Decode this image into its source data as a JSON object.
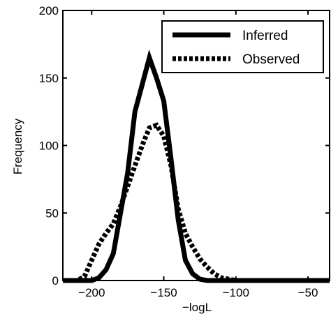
{
  "chart_data": {
    "type": "line",
    "xlabel": "−logL",
    "ylabel": "Frequency",
    "xlim": [
      -220,
      -35
    ],
    "ylim": [
      0,
      200
    ],
    "xticks": [
      -200,
      -150,
      -100,
      -50
    ],
    "xtick_labels": [
      "−200",
      "−150",
      "−100",
      "−50"
    ],
    "yticks": [
      0,
      50,
      100,
      150,
      200
    ],
    "ytick_labels": [
      "0",
      "50",
      "100",
      "150",
      "200"
    ],
    "grid": false,
    "legend": "top-right",
    "series": [
      {
        "name": "Inferred",
        "style": "solid",
        "color": "#000000",
        "x": [
          -220,
          -200,
          -195,
          -190,
          -185,
          -180,
          -175,
          -170,
          -165,
          -160,
          -155,
          -150,
          -145,
          -140,
          -135,
          -130,
          -125,
          -120,
          -100,
          -50,
          -35
        ],
        "y": [
          0,
          0,
          2,
          8,
          20,
          50,
          80,
          125,
          145,
          165,
          150,
          133,
          90,
          45,
          15,
          5,
          1,
          0,
          0,
          0,
          0
        ]
      },
      {
        "name": "Observed",
        "style": "dashed",
        "color": "#000000",
        "x": [
          -220,
          -210,
          -205,
          -200,
          -195,
          -190,
          -185,
          -180,
          -175,
          -170,
          -165,
          -160,
          -155,
          -150,
          -145,
          -140,
          -135,
          -130,
          -125,
          -120,
          -115,
          -110,
          -100,
          -50,
          -35
        ],
        "y": [
          0,
          0,
          3,
          15,
          27,
          35,
          42,
          55,
          70,
          85,
          100,
          113,
          115,
          107,
          85,
          53,
          35,
          25,
          16,
          10,
          5,
          2,
          0,
          0,
          0
        ]
      }
    ]
  }
}
